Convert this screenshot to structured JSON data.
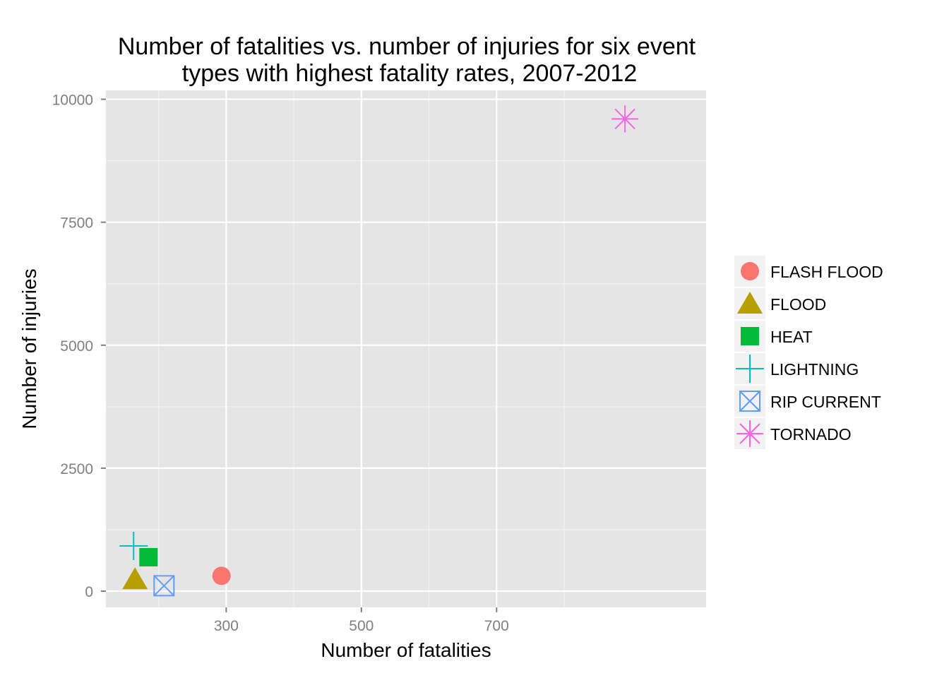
{
  "chart_data": {
    "type": "scatter",
    "title_line1": "Number of fatalities vs. number of injuries for six event",
    "title_line2": "types with highest fatality rates, 2007-2012",
    "xlabel": "Number of fatalities",
    "ylabel": "Number of injuries",
    "xlim": [
      122,
      1010
    ],
    "ylim": [
      -330,
      10180
    ],
    "x_ticks": [
      300,
      500,
      700
    ],
    "x_minor": [
      200,
      400,
      600,
      800
    ],
    "y_ticks": [
      0,
      2500,
      5000,
      7500,
      10000
    ],
    "y_minor": [
      1250,
      3750,
      6250,
      8750
    ],
    "grid": true,
    "legend_position": "right",
    "series": [
      {
        "name": "FLASH FLOOD",
        "shape": "circle",
        "color": "#F8766D",
        "x": 293,
        "y": 310
      },
      {
        "name": "FLOOD",
        "shape": "triangle",
        "color": "#B79F00",
        "x": 165,
        "y": 240
      },
      {
        "name": "HEAT",
        "shape": "square",
        "color": "#00BA38",
        "x": 185,
        "y": 690
      },
      {
        "name": "LIGHTNING",
        "shape": "plus",
        "color": "#00BFC4",
        "x": 163,
        "y": 920
      },
      {
        "name": "RIP CURRENT",
        "shape": "square-cross",
        "color": "#619CFF",
        "x": 208,
        "y": 110
      },
      {
        "name": "TORNADO",
        "shape": "asterisk",
        "color": "#F564E3",
        "x": 890,
        "y": 9600
      }
    ]
  }
}
